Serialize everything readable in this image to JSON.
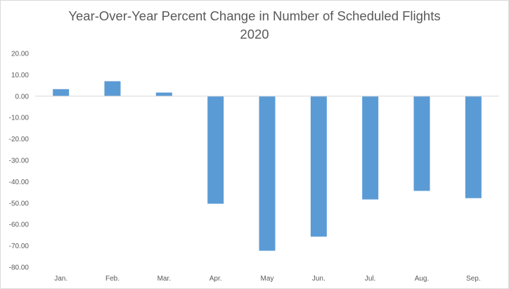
{
  "chart_data": {
    "type": "bar",
    "title": "Year-Over-Year Percent Change in Number of Scheduled Flights",
    "subtitle": "2020",
    "categories": [
      "Jan.",
      "Feb.",
      "Mar.",
      "Apr.",
      "May",
      "Jun.",
      "Jul.",
      "Aug.",
      "Sep."
    ],
    "values": [
      3.3,
      7.0,
      1.7,
      -50.3,
      -72.3,
      -65.7,
      -48.3,
      -44.3,
      -47.7
    ],
    "ylim": [
      -80,
      20
    ],
    "yticks": [
      "20.00",
      "10.00",
      "0.00",
      "-10.00",
      "-20.00",
      "-30.00",
      "-40.00",
      "-50.00",
      "-60.00",
      "-70.00",
      "-80.00"
    ],
    "ytick_values": [
      20,
      10,
      0,
      -10,
      -20,
      -30,
      -40,
      -50,
      -60,
      -70,
      -80
    ],
    "grid": false,
    "legend": "none",
    "bar_color": "#5b9bd5",
    "axis_color": "#d9d9d9"
  }
}
